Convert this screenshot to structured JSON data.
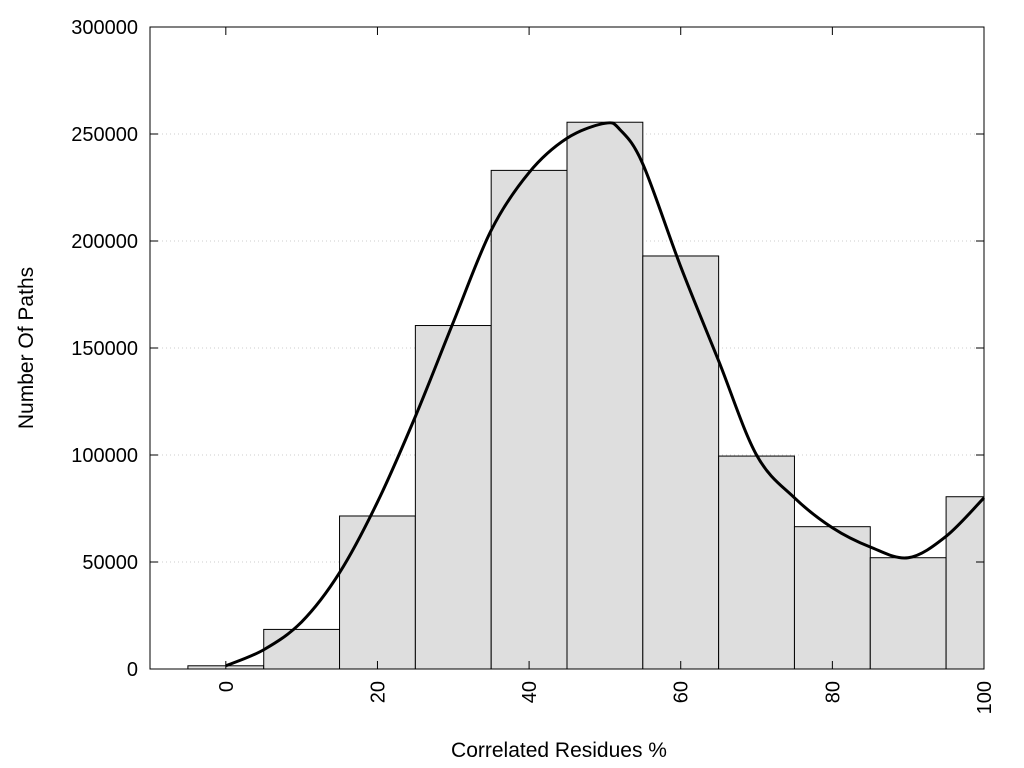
{
  "chart_data": {
    "type": "bar",
    "title": "",
    "xlabel": "Correlated Residues %",
    "ylabel": "Number Of Paths",
    "xlim": [
      -10,
      100
    ],
    "ylim": [
      0,
      300000
    ],
    "x_ticks": [
      0,
      20,
      40,
      60,
      80,
      100
    ],
    "y_ticks": [
      0,
      50000,
      100000,
      150000,
      200000,
      250000,
      300000
    ],
    "grid": "horizontal dotted",
    "bin_width": 10,
    "bars": [
      {
        "x": 0,
        "value": 1500
      },
      {
        "x": 10,
        "value": 18500
      },
      {
        "x": 20,
        "value": 71500
      },
      {
        "x": 30,
        "value": 160500
      },
      {
        "x": 40,
        "value": 233000
      },
      {
        "x": 50,
        "value": 255500
      },
      {
        "x": 60,
        "value": 193000
      },
      {
        "x": 70,
        "value": 99500
      },
      {
        "x": 80,
        "value": 66500
      },
      {
        "x": 90,
        "value": 52000
      },
      {
        "x": 100,
        "value": 80500
      }
    ],
    "curve": {
      "x": [
        0,
        5,
        10,
        15,
        20,
        25,
        30,
        35,
        40,
        45,
        50,
        52,
        55,
        60,
        65,
        70,
        75,
        80,
        85,
        90,
        95,
        100
      ],
      "y": [
        1500,
        9000,
        22000,
        45000,
        78000,
        118000,
        162000,
        205000,
        232000,
        248000,
        255000,
        252000,
        236000,
        188000,
        144000,
        100000,
        80000,
        66000,
        57000,
        52000,
        62000,
        80000
      ]
    },
    "colors": {
      "bar_fill": "#dedede",
      "bar_stroke": "#000000",
      "curve": "#000000",
      "grid": "#cccccc"
    }
  }
}
